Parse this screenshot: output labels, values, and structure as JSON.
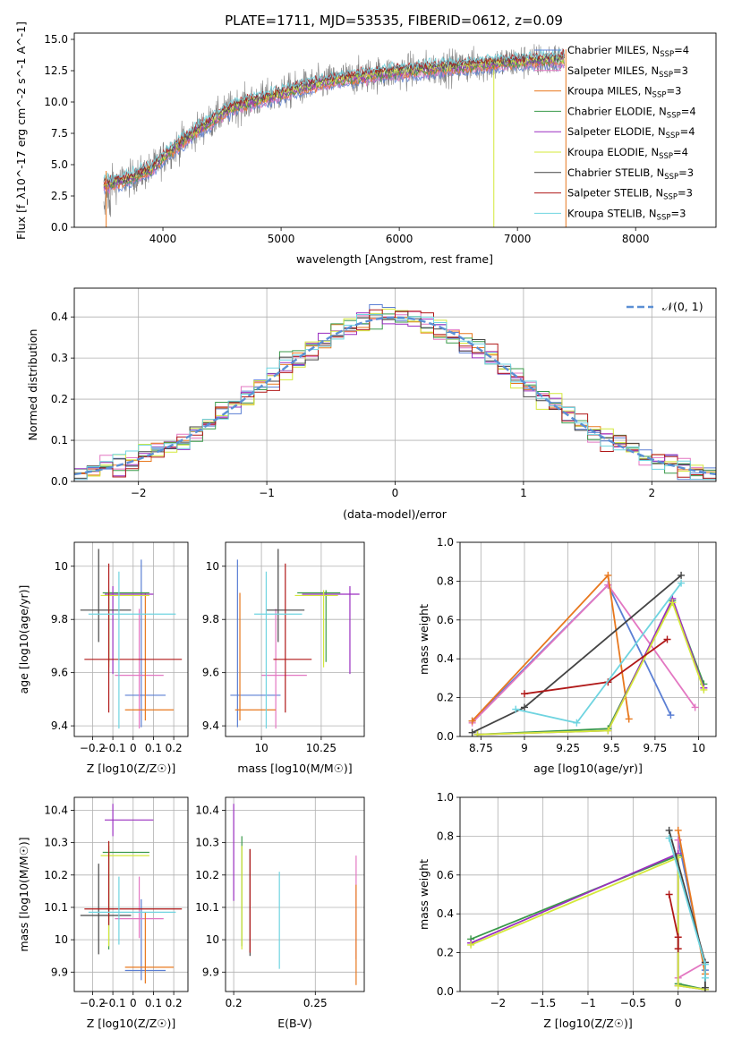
{
  "figure_title": "PLATE=1711, MJD=53535, FIBERID=0612, z=0.09",
  "colors": {
    "Chabrier MILES": "#5b7fd4",
    "Salpeter MILES": "#e377c2",
    "Kroupa MILES": "#e8781e",
    "Chabrier ELODIE": "#3a9a4a",
    "Salpeter ELODIE": "#9a2fc0",
    "Kroupa ELODIE": "#d4e83a",
    "Chabrier STELIB": "#444444",
    "Salpeter STELIB": "#b01818",
    "Kroupa STELIB": "#6fd4e0",
    "data": "#808080",
    "gauss": "#5b8fd4",
    "grid": "#b0b0b0"
  },
  "chart_data": [
    {
      "id": "spectrum",
      "type": "line",
      "title": "PLATE=1711, MJD=53535, FIBERID=0612, z=0.09",
      "xlabel": "wavelength [Angstrom, rest frame]",
      "ylabel": "Flux [f_λ10^-17 erg cm^-2 s^-1 A^-1]",
      "xlim": [
        3250,
        8680
      ],
      "ylim": [
        0,
        15.5
      ],
      "xticks": [
        4000,
        5000,
        6000,
        7000,
        8000
      ],
      "yticks": [
        0.0,
        2.5,
        5.0,
        7.5,
        10.0,
        12.5,
        15.0
      ],
      "grid": false,
      "legend_position": "right",
      "continuum": [
        [
          3500,
          3.4
        ],
        [
          3700,
          3.8
        ],
        [
          3900,
          4.6
        ],
        [
          4050,
          6.0
        ],
        [
          4300,
          7.8
        ],
        [
          4600,
          9.6
        ],
        [
          4900,
          10.4
        ],
        [
          5200,
          11.2
        ],
        [
          5500,
          11.8
        ],
        [
          5800,
          12.2
        ],
        [
          6200,
          12.6
        ],
        [
          6600,
          12.9
        ],
        [
          7000,
          13.2
        ],
        [
          7400,
          13.4
        ]
      ],
      "legend": [
        {
          "name": "Chabrier MILES",
          "nssp": 4
        },
        {
          "name": "Salpeter MILES",
          "nssp": 3
        },
        {
          "name": "Kroupa MILES",
          "nssp": 3
        },
        {
          "name": "Chabrier ELODIE",
          "nssp": 4
        },
        {
          "name": "Salpeter ELODIE",
          "nssp": 4
        },
        {
          "name": "Kroupa ELODIE",
          "nssp": 4
        },
        {
          "name": "Chabrier STELIB",
          "nssp": 3
        },
        {
          "name": "Salpeter STELIB",
          "nssp": 3
        },
        {
          "name": "Kroupa STELIB",
          "nssp": 3
        }
      ]
    },
    {
      "id": "residuals",
      "type": "histogram",
      "xlabel": "(data-model)/error",
      "ylabel": "Normed distribution",
      "xlim": [
        -2.5,
        2.5
      ],
      "ylim": [
        0,
        0.47
      ],
      "xticks": [
        -2,
        -1,
        0,
        1,
        2
      ],
      "yticks": [
        0.0,
        0.1,
        0.2,
        0.3,
        0.4
      ],
      "grid": true,
      "bin_width": 0.1,
      "legend": "𝒩(0, 1)",
      "legend_position": "top-right"
    },
    {
      "id": "age_vs_Z",
      "type": "errorbar",
      "xlabel": "Z [log10(Z/Z☉)]",
      "ylabel": "age [log10(age/yr)]",
      "xlim": [
        -0.29,
        0.27
      ],
      "ylim": [
        9.36,
        10.09
      ],
      "xticks": [
        -0.2,
        -0.1,
        0.0,
        0.1,
        0.2
      ],
      "yticks": [
        9.4,
        9.6,
        9.8,
        10.0
      ],
      "grid": true,
      "points": [
        {
          "model": "Chabrier MILES",
          "x": 0.04,
          "xerr": [
            0.08,
            0.12
          ],
          "y": 9.515,
          "yerr": [
            0.12,
            0.51
          ]
        },
        {
          "model": "Salpeter MILES",
          "x": 0.03,
          "xerr": [
            0.12,
            0.12
          ],
          "y": 9.59,
          "yerr": [
            0.2,
            0.25
          ]
        },
        {
          "model": "Kroupa MILES",
          "x": 0.06,
          "xerr": [
            0.1,
            0.14
          ],
          "y": 9.46,
          "yerr": [
            0.04,
            0.44
          ]
        },
        {
          "model": "Chabrier ELODIE",
          "x": -0.12,
          "xerr": [
            0.03,
            0.2
          ],
          "y": 9.9,
          "yerr": [
            0.26,
            0.01
          ]
        },
        {
          "model": "Salpeter ELODIE",
          "x": -0.1,
          "xerr": [
            0.04,
            0.2
          ],
          "y": 9.895,
          "yerr": [
            0.3,
            0.03
          ]
        },
        {
          "model": "Kroupa ELODIE",
          "x": -0.12,
          "xerr": [
            0.04,
            0.2
          ],
          "y": 9.89,
          "yerr": [
            0.27,
            0.02
          ]
        },
        {
          "model": "Chabrier STELIB",
          "x": -0.17,
          "xerr": [
            0.09,
            0.16
          ],
          "y": 9.835,
          "yerr": [
            0.12,
            0.23
          ]
        },
        {
          "model": "Salpeter STELIB",
          "x": -0.12,
          "xerr": [
            0.12,
            0.36
          ],
          "y": 9.65,
          "yerr": [
            0.2,
            0.36
          ]
        },
        {
          "model": "Kroupa STELIB",
          "x": -0.07,
          "xerr": [
            0.15,
            0.28
          ],
          "y": 9.82,
          "yerr": [
            0.43,
            0.16
          ]
        }
      ]
    },
    {
      "id": "age_vs_mass",
      "type": "errorbar",
      "xlabel": "mass [log10(M/M☉)]",
      "xlim": [
        9.85,
        10.43
      ],
      "ylim": [
        9.36,
        10.09
      ],
      "xticks": [
        10.0,
        10.25
      ],
      "yticks": [
        9.4,
        9.6,
        9.8,
        10.0
      ],
      "grid": true,
      "points": [
        {
          "model": "Chabrier MILES",
          "x": 9.9,
          "xerr": [
            0.03,
            0.18
          ],
          "y": 9.515,
          "yerr": [
            0.12,
            0.51
          ]
        },
        {
          "model": "Salpeter MILES",
          "x": 10.06,
          "xerr": [
            0.06,
            0.13
          ],
          "y": 9.59,
          "yerr": [
            0.2,
            0.25
          ]
        },
        {
          "model": "Kroupa MILES",
          "x": 9.91,
          "xerr": [
            0.02,
            0.15
          ],
          "y": 9.46,
          "yerr": [
            0.04,
            0.44
          ]
        },
        {
          "model": "Chabrier ELODIE",
          "x": 10.27,
          "xerr": [
            0.12,
            0.06
          ],
          "y": 9.9,
          "yerr": [
            0.26,
            0.01
          ]
        },
        {
          "model": "Salpeter ELODIE",
          "x": 10.37,
          "xerr": [
            0.2,
            0.04
          ],
          "y": 9.895,
          "yerr": [
            0.3,
            0.03
          ]
        },
        {
          "model": "Kroupa ELODIE",
          "x": 10.26,
          "xerr": [
            0.12,
            0.06
          ],
          "y": 9.89,
          "yerr": [
            0.27,
            0.02
          ]
        },
        {
          "model": "Chabrier STELIB",
          "x": 10.07,
          "xerr": [
            0.05,
            0.11
          ],
          "y": 9.835,
          "yerr": [
            0.12,
            0.23
          ]
        },
        {
          "model": "Salpeter STELIB",
          "x": 10.1,
          "xerr": [
            0.05,
            0.11
          ],
          "y": 9.65,
          "yerr": [
            0.2,
            0.36
          ]
        },
        {
          "model": "Kroupa STELIB",
          "x": 10.02,
          "xerr": [
            0.05,
            0.15
          ],
          "y": 9.82,
          "yerr": [
            0.43,
            0.16
          ]
        }
      ]
    },
    {
      "id": "weight_vs_age",
      "type": "line",
      "xlabel": "age [log10(age/yr)]",
      "ylabel": "mass weight",
      "xlim": [
        8.63,
        10.1
      ],
      "ylim": [
        0,
        1
      ],
      "xticks": [
        8.75,
        9.0,
        9.25,
        9.5,
        9.75,
        10.0
      ],
      "yticks": [
        0.0,
        0.2,
        0.4,
        0.6,
        0.8,
        1.0
      ],
      "grid": true,
      "series": [
        {
          "model": "Chabrier MILES",
          "x": [
            8.7,
            9.48,
            9.84
          ],
          "y": [
            0.08,
            0.78,
            0.11
          ]
        },
        {
          "model": "Salpeter MILES",
          "x": [
            8.7,
            9.48,
            9.98
          ],
          "y": [
            0.07,
            0.78,
            0.15
          ]
        },
        {
          "model": "Kroupa MILES",
          "x": [
            8.7,
            9.48,
            9.6
          ],
          "y": [
            0.08,
            0.83,
            0.09
          ]
        },
        {
          "model": "Chabrier ELODIE",
          "x": [
            8.73,
            9.48,
            9.85,
            10.03
          ],
          "y": [
            0.01,
            0.04,
            0.7,
            0.27
          ]
        },
        {
          "model": "Salpeter ELODIE",
          "x": [
            8.73,
            9.48,
            9.85,
            10.03
          ],
          "y": [
            0.01,
            0.03,
            0.71,
            0.25
          ]
        },
        {
          "model": "Kroupa ELODIE",
          "x": [
            8.73,
            9.48,
            9.85,
            10.03
          ],
          "y": [
            0.01,
            0.03,
            0.69,
            0.24
          ]
        },
        {
          "model": "Chabrier STELIB",
          "x": [
            8.7,
            9.0,
            9.9
          ],
          "y": [
            0.02,
            0.15,
            0.83
          ]
        },
        {
          "model": "Salpeter STELIB",
          "x": [
            9.0,
            9.48,
            9.82
          ],
          "y": [
            0.22,
            0.28,
            0.5
          ]
        },
        {
          "model": "Kroupa STELIB",
          "x": [
            8.95,
            9.3,
            9.9
          ],
          "y": [
            0.14,
            0.07,
            0.79
          ]
        }
      ]
    },
    {
      "id": "mass_vs_Z",
      "type": "errorbar",
      "xlabel": "Z [log10(Z/Z☉)]",
      "ylabel": "mass [log10(M/M☉)]",
      "xlim": [
        -0.29,
        0.27
      ],
      "ylim": [
        9.84,
        10.44
      ],
      "xticks": [
        -0.2,
        -0.1,
        0.0,
        0.1,
        0.2
      ],
      "yticks": [
        9.9,
        10.0,
        10.1,
        10.2,
        10.3,
        10.4
      ],
      "grid": true,
      "points": [
        {
          "model": "Chabrier MILES",
          "x": 0.04,
          "xerr": [
            0.08,
            0.12
          ],
          "y": 9.905,
          "yerr": [
            0.03,
            0.22
          ]
        },
        {
          "model": "Salpeter MILES",
          "x": 0.03,
          "xerr": [
            0.12,
            0.12
          ],
          "y": 10.065,
          "yerr": [
            0.06,
            0.13
          ]
        },
        {
          "model": "Kroupa MILES",
          "x": 0.06,
          "xerr": [
            0.1,
            0.14
          ],
          "y": 9.915,
          "yerr": [
            0.05,
            0.17
          ]
        },
        {
          "model": "Chabrier ELODIE",
          "x": -0.12,
          "xerr": [
            0.03,
            0.2
          ],
          "y": 10.27,
          "yerr": [
            0.3,
            0.02
          ]
        },
        {
          "model": "Salpeter ELODIE",
          "x": -0.1,
          "xerr": [
            0.04,
            0.2
          ],
          "y": 10.37,
          "yerr": [
            0.05,
            0.05
          ]
        },
        {
          "model": "Kroupa ELODIE",
          "x": -0.12,
          "xerr": [
            0.04,
            0.2
          ],
          "y": 10.26,
          "yerr": [
            0.28,
            0.04
          ]
        },
        {
          "model": "Chabrier STELIB",
          "x": -0.17,
          "xerr": [
            0.09,
            0.16
          ],
          "y": 10.075,
          "yerr": [
            0.12,
            0.16
          ]
        },
        {
          "model": "Salpeter STELIB",
          "x": -0.12,
          "xerr": [
            0.12,
            0.36
          ],
          "y": 10.095,
          "yerr": [
            0.05,
            0.21
          ]
        },
        {
          "model": "Kroupa STELIB",
          "x": -0.07,
          "xerr": [
            0.15,
            0.28
          ],
          "y": 10.085,
          "yerr": [
            0.1,
            0.11
          ]
        }
      ]
    },
    {
      "id": "mass_vs_EBV",
      "type": "errorbar",
      "xlabel": "E(B-V)",
      "xlim": [
        0.195,
        0.28
      ],
      "ylim": [
        9.84,
        10.44
      ],
      "xticks": [
        0.2,
        0.25
      ],
      "yticks": [
        9.9,
        10.0,
        10.1,
        10.2,
        10.3,
        10.4
      ],
      "grid": true,
      "points": [
        {
          "model": "Salpeter MILES",
          "x": 0.275,
          "y": 10.09,
          "yerr": [
            0.15,
            0.17
          ]
        },
        {
          "model": "Kroupa MILES",
          "x": 0.275,
          "y": 10.0,
          "yerr": [
            0.14,
            0.17
          ]
        },
        {
          "model": "Chabrier ELODIE",
          "x": 0.205,
          "y": 10.15,
          "yerr": [
            0.17,
            0.17
          ]
        },
        {
          "model": "Salpeter ELODIE",
          "x": 0.2,
          "y": 10.27,
          "yerr": [
            0.15,
            0.15
          ]
        },
        {
          "model": "Kroupa ELODIE",
          "x": 0.205,
          "y": 10.13,
          "yerr": [
            0.16,
            0.16
          ]
        },
        {
          "model": "Chabrier STELIB",
          "x": 0.21,
          "y": 10.11,
          "yerr": [
            0.16,
            0.17
          ]
        },
        {
          "model": "Salpeter STELIB",
          "x": 0.21,
          "y": 10.12,
          "yerr": [
            0.16,
            0.16
          ]
        },
        {
          "model": "Kroupa STELIB",
          "x": 0.228,
          "y": 10.06,
          "yerr": [
            0.15,
            0.15
          ]
        }
      ]
    },
    {
      "id": "weight_vs_Z",
      "type": "line",
      "xlabel": "Z [log10(Z/Z☉)]",
      "ylabel": "mass weight",
      "xlim": [
        -2.42,
        0.42
      ],
      "ylim": [
        0,
        1
      ],
      "xticks": [
        -2.0,
        -1.5,
        -1.0,
        -0.5,
        0.0
      ],
      "yticks": [
        0.0,
        0.2,
        0.4,
        0.6,
        0.8,
        1.0
      ],
      "grid": true,
      "series": [
        {
          "model": "Chabrier MILES",
          "x": [
            0.0,
            0.3
          ],
          "y": [
            0.78,
            0.11
          ]
        },
        {
          "model": "Salpeter MILES",
          "x": [
            0.0,
            0.0,
            0.3
          ],
          "y": [
            0.78,
            0.07,
            0.15
          ]
        },
        {
          "model": "Kroupa MILES",
          "x": [
            0.0,
            0.3
          ],
          "y": [
            0.83,
            0.09
          ]
        },
        {
          "model": "Chabrier ELODIE",
          "x": [
            -2.3,
            0.0,
            0.0,
            0.3
          ],
          "y": [
            0.27,
            0.7,
            0.04,
            0.01
          ]
        },
        {
          "model": "Salpeter ELODIE",
          "x": [
            -2.3,
            0.0,
            0.0,
            0.3
          ],
          "y": [
            0.25,
            0.71,
            0.03,
            0.01
          ]
        },
        {
          "model": "Kroupa ELODIE",
          "x": [
            -2.3,
            0.0,
            0.0,
            0.3
          ],
          "y": [
            0.24,
            0.69,
            0.03,
            0.01
          ]
        },
        {
          "model": "Chabrier STELIB",
          "x": [
            -0.1,
            0.3,
            0.3
          ],
          "y": [
            0.83,
            0.15,
            0.02
          ]
        },
        {
          "model": "Salpeter STELIB",
          "x": [
            -0.1,
            0.0,
            0.0
          ],
          "y": [
            0.5,
            0.28,
            0.22
          ]
        },
        {
          "model": "Kroupa STELIB",
          "x": [
            -0.1,
            0.3,
            0.3
          ],
          "y": [
            0.79,
            0.14,
            0.07
          ]
        }
      ]
    }
  ]
}
